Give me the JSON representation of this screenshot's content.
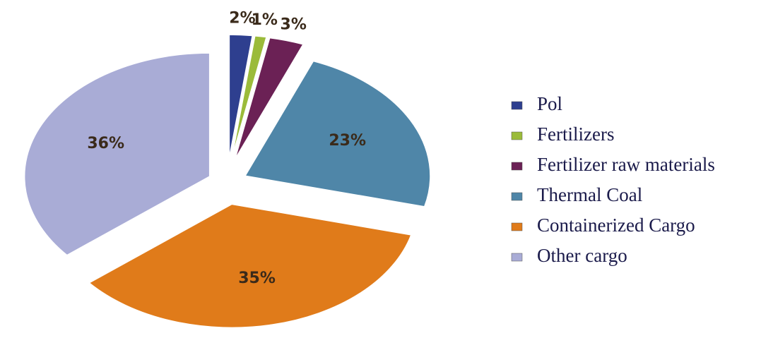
{
  "chart_data": {
    "type": "pie",
    "categories": [
      "Pol",
      "Fertilizers",
      "Fertilizer raw materials",
      "Thermal Coal",
      "Containerized Cargo",
      "Other cargo"
    ],
    "values": [
      2,
      1,
      3,
      23,
      35,
      36
    ],
    "value_labels": [
      "2%",
      "1%",
      "3%",
      "23%",
      "35%",
      "36%"
    ],
    "colors": [
      "#2e3f8f",
      "#9bbb3a",
      "#6b2155",
      "#4f86a8",
      "#e07b1a",
      "#a9acd6"
    ],
    "legend": "right"
  }
}
